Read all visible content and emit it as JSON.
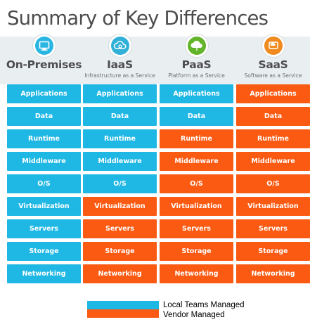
{
  "title": "Summary of Key Differences",
  "colors": {
    "local": "#1fb7e4",
    "vendor": "#fb5a12",
    "band": "#e9eef1"
  },
  "columns": [
    {
      "name": "On-Premises",
      "subtitle": "",
      "icon": "monitor-icon",
      "icon_color": "#29b6e2",
      "cells": [
        {
          "label": "Applications",
          "owner": "local"
        },
        {
          "label": "Data",
          "owner": "local"
        },
        {
          "label": "Runtime",
          "owner": "local"
        },
        {
          "label": "Middleware",
          "owner": "local"
        },
        {
          "label": "O/S",
          "owner": "local"
        },
        {
          "label": "Virtualization",
          "owner": "local"
        },
        {
          "label": "Servers",
          "owner": "local"
        },
        {
          "label": "Storage",
          "owner": "local"
        },
        {
          "label": "Networking",
          "owner": "local"
        }
      ]
    },
    {
      "name": "IaaS",
      "subtitle": "Infrastructure as a Service",
      "icon": "cloud-gear-icon",
      "icon_color": "#31b0d8",
      "cells": [
        {
          "label": "Applications",
          "owner": "local"
        },
        {
          "label": "Data",
          "owner": "local"
        },
        {
          "label": "Runtime",
          "owner": "local"
        },
        {
          "label": "Middleware",
          "owner": "local"
        },
        {
          "label": "O/S",
          "owner": "local"
        },
        {
          "label": "Virtualization",
          "owner": "vendor"
        },
        {
          "label": "Servers",
          "owner": "vendor"
        },
        {
          "label": "Storage",
          "owner": "vendor"
        },
        {
          "label": "Networking",
          "owner": "vendor"
        }
      ]
    },
    {
      "name": "PaaS",
      "subtitle": "Platform as a Service",
      "icon": "cloud-icon",
      "icon_color": "#62b52b",
      "cells": [
        {
          "label": "Applications",
          "owner": "local"
        },
        {
          "label": "Data",
          "owner": "local"
        },
        {
          "label": "Runtime",
          "owner": "vendor"
        },
        {
          "label": "Middleware",
          "owner": "vendor"
        },
        {
          "label": "O/S",
          "owner": "vendor"
        },
        {
          "label": "Virtualization",
          "owner": "vendor"
        },
        {
          "label": "Servers",
          "owner": "vendor"
        },
        {
          "label": "Storage",
          "owner": "vendor"
        },
        {
          "label": "Networking",
          "owner": "vendor"
        }
      ]
    },
    {
      "name": "SaaS",
      "subtitle": "Software as a Service",
      "icon": "cloud-app-icon",
      "icon_color": "#f08a1e",
      "cells": [
        {
          "label": "Applications",
          "owner": "vendor"
        },
        {
          "label": "Data",
          "owner": "vendor"
        },
        {
          "label": "Runtime",
          "owner": "vendor"
        },
        {
          "label": "Middleware",
          "owner": "vendor"
        },
        {
          "label": "O/S",
          "owner": "vendor"
        },
        {
          "label": "Virtualization",
          "owner": "vendor"
        },
        {
          "label": "Servers",
          "owner": "vendor"
        },
        {
          "label": "Storage",
          "owner": "vendor"
        },
        {
          "label": "Networking",
          "owner": "vendor"
        }
      ]
    }
  ],
  "legend": [
    {
      "label": "Local Teams Managed",
      "owner": "local"
    },
    {
      "label": "Vendor Managed",
      "owner": "vendor"
    }
  ]
}
